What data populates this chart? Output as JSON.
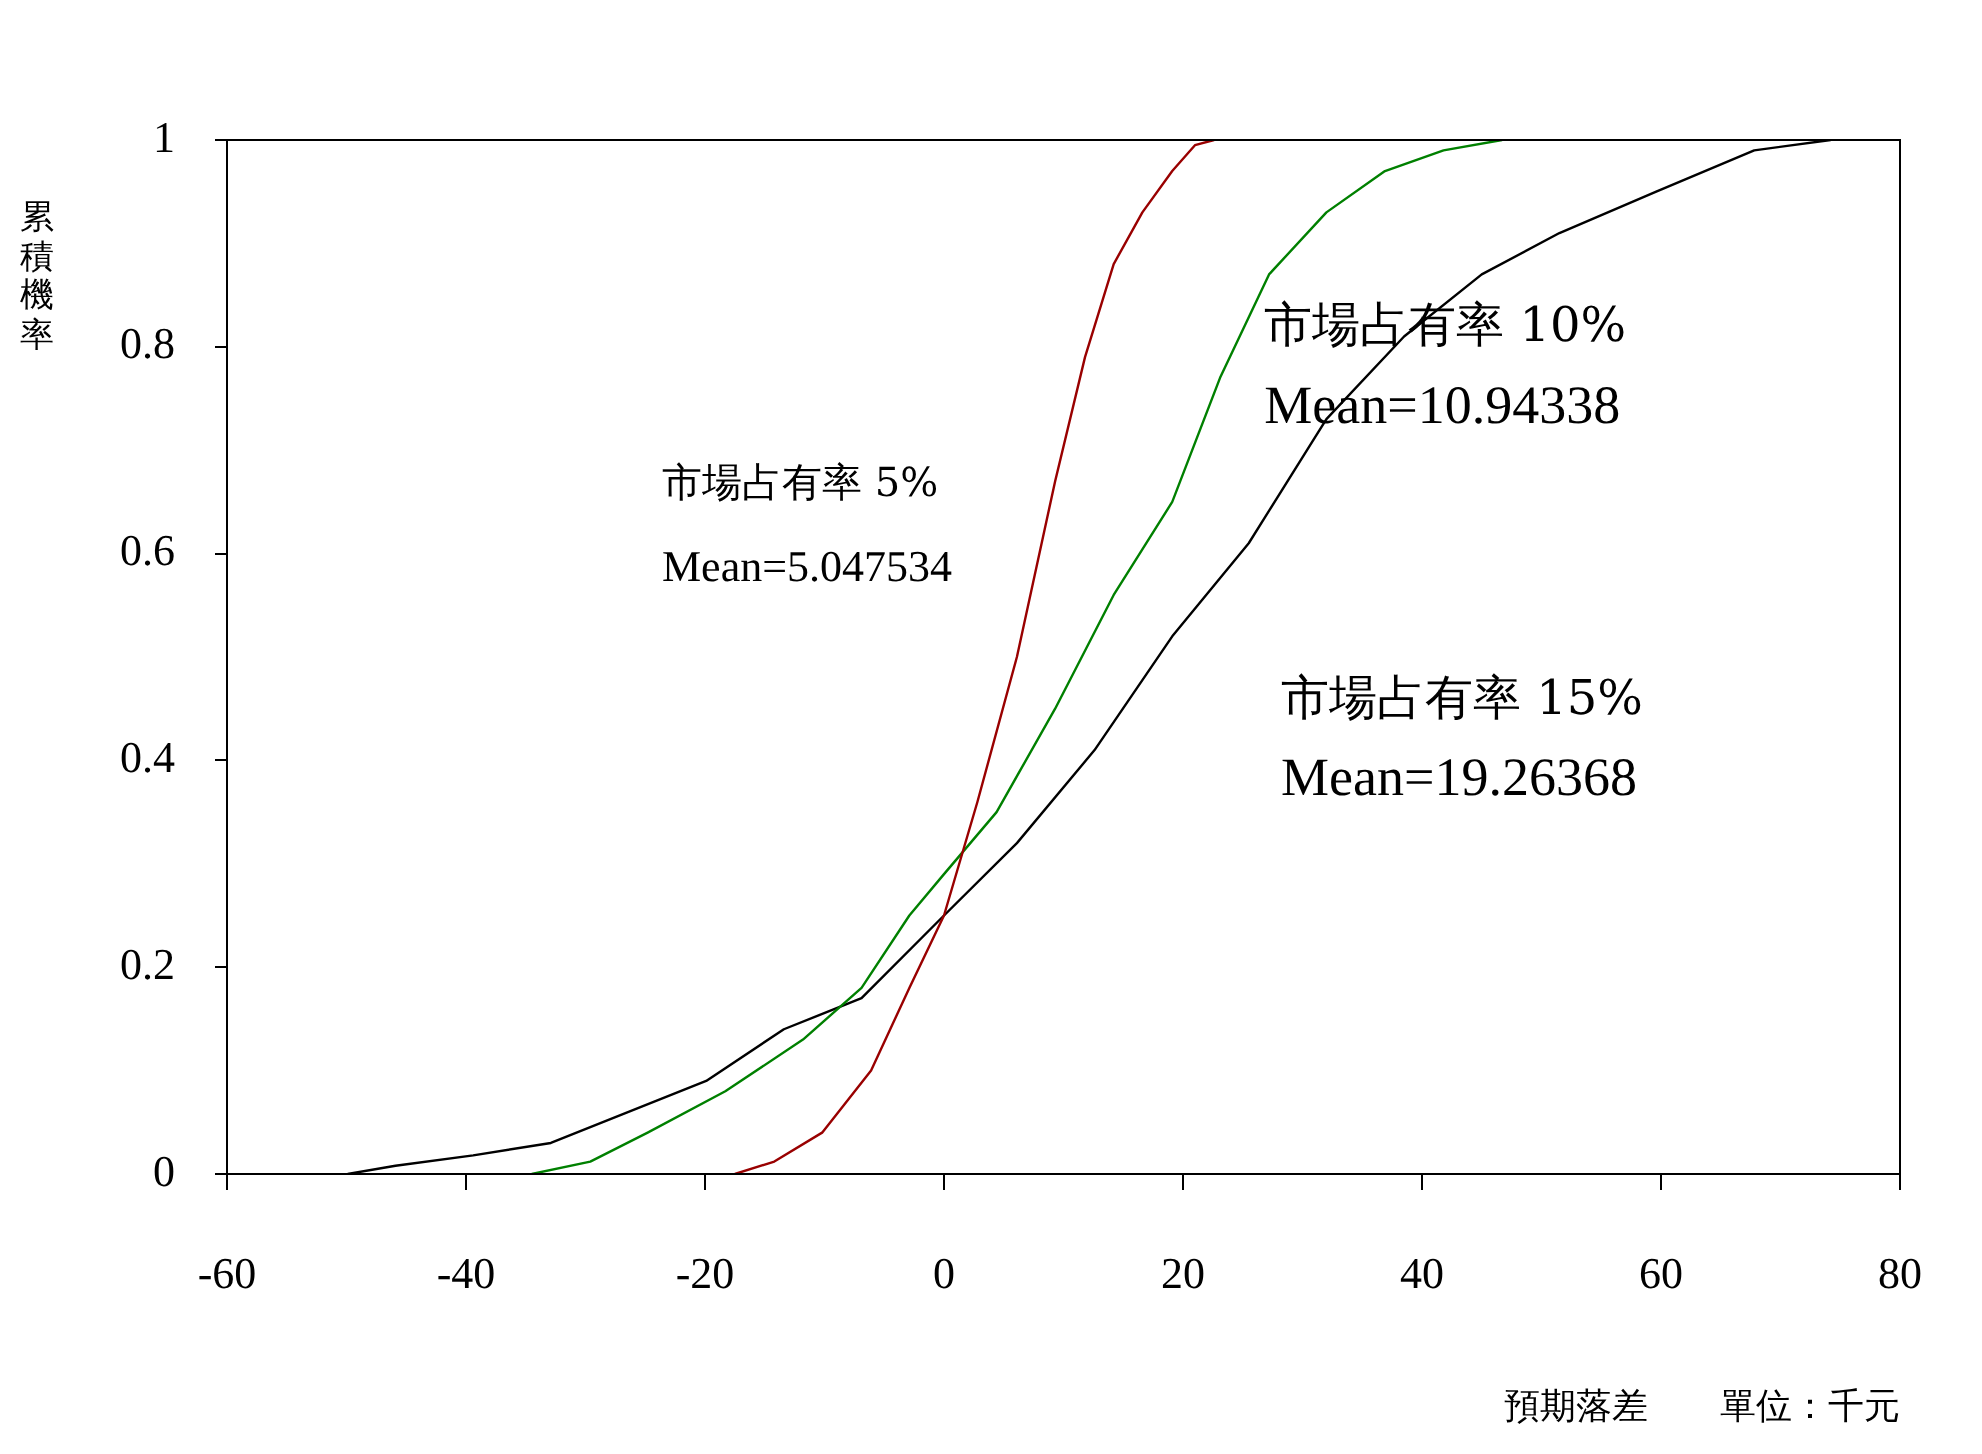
{
  "chart_data": {
    "type": "line",
    "xlabel": "預期落差　　單位：千元",
    "ylabel": "累積機率",
    "xlim": [
      -60,
      80
    ],
    "xticks": [
      -60,
      -40,
      -20,
      0,
      20,
      40,
      60,
      80
    ],
    "ylim": [
      0,
      1
    ],
    "yticks": [
      0,
      0.2,
      0.4,
      0.6,
      0.8,
      1
    ],
    "grid": false,
    "legend": false,
    "marker": "none",
    "line_style": "solid",
    "series": [
      {
        "name": "市場占有率 5%",
        "color": "#990000",
        "x": [
          -17.5,
          -14.2,
          -10.2,
          -6.1,
          -2.9,
          0,
          2.8,
          6.1,
          9.3,
          11.8,
          14.2,
          16.6,
          19.1,
          21,
          22.6
        ],
        "values": [
          0,
          0.012,
          0.04,
          0.1,
          0.18,
          0.25,
          0.36,
          0.5,
          0.67,
          0.79,
          0.88,
          0.93,
          0.97,
          0.995,
          1
        ]
      },
      {
        "name": "市場占有率 10%",
        "color": "#008000",
        "x": [
          -34.5,
          -29.6,
          -24.8,
          -18.3,
          -11.8,
          -6.9,
          -2.9,
          0,
          4.4,
          9.3,
          14.2,
          19.1,
          23.1,
          27.2,
          32,
          36.9,
          41.8,
          46.7
        ],
        "values": [
          0,
          0.012,
          0.04,
          0.08,
          0.13,
          0.18,
          0.25,
          0.29,
          0.35,
          0.45,
          0.56,
          0.65,
          0.77,
          0.87,
          0.93,
          0.97,
          0.99,
          1
        ]
      },
      {
        "name": "市場占有率 15%",
        "color": "#000000",
        "x": [
          -49.9,
          -45.9,
          -39.4,
          -32.9,
          -26.4,
          -19.9,
          -13.4,
          -6.9,
          0,
          6.1,
          12.6,
          19.1,
          25.5,
          32,
          38.5,
          45,
          51.5,
          59.6,
          67.8,
          74.2
        ],
        "values": [
          0,
          0.008,
          0.018,
          0.03,
          0.06,
          0.09,
          0.14,
          0.17,
          0.25,
          0.32,
          0.41,
          0.52,
          0.61,
          0.73,
          0.81,
          0.87,
          0.91,
          0.95,
          0.99,
          1
        ]
      }
    ],
    "annotations": [
      "Mean=5.047534",
      "Mean=10.94338",
      "Mean=19.26368"
    ]
  }
}
